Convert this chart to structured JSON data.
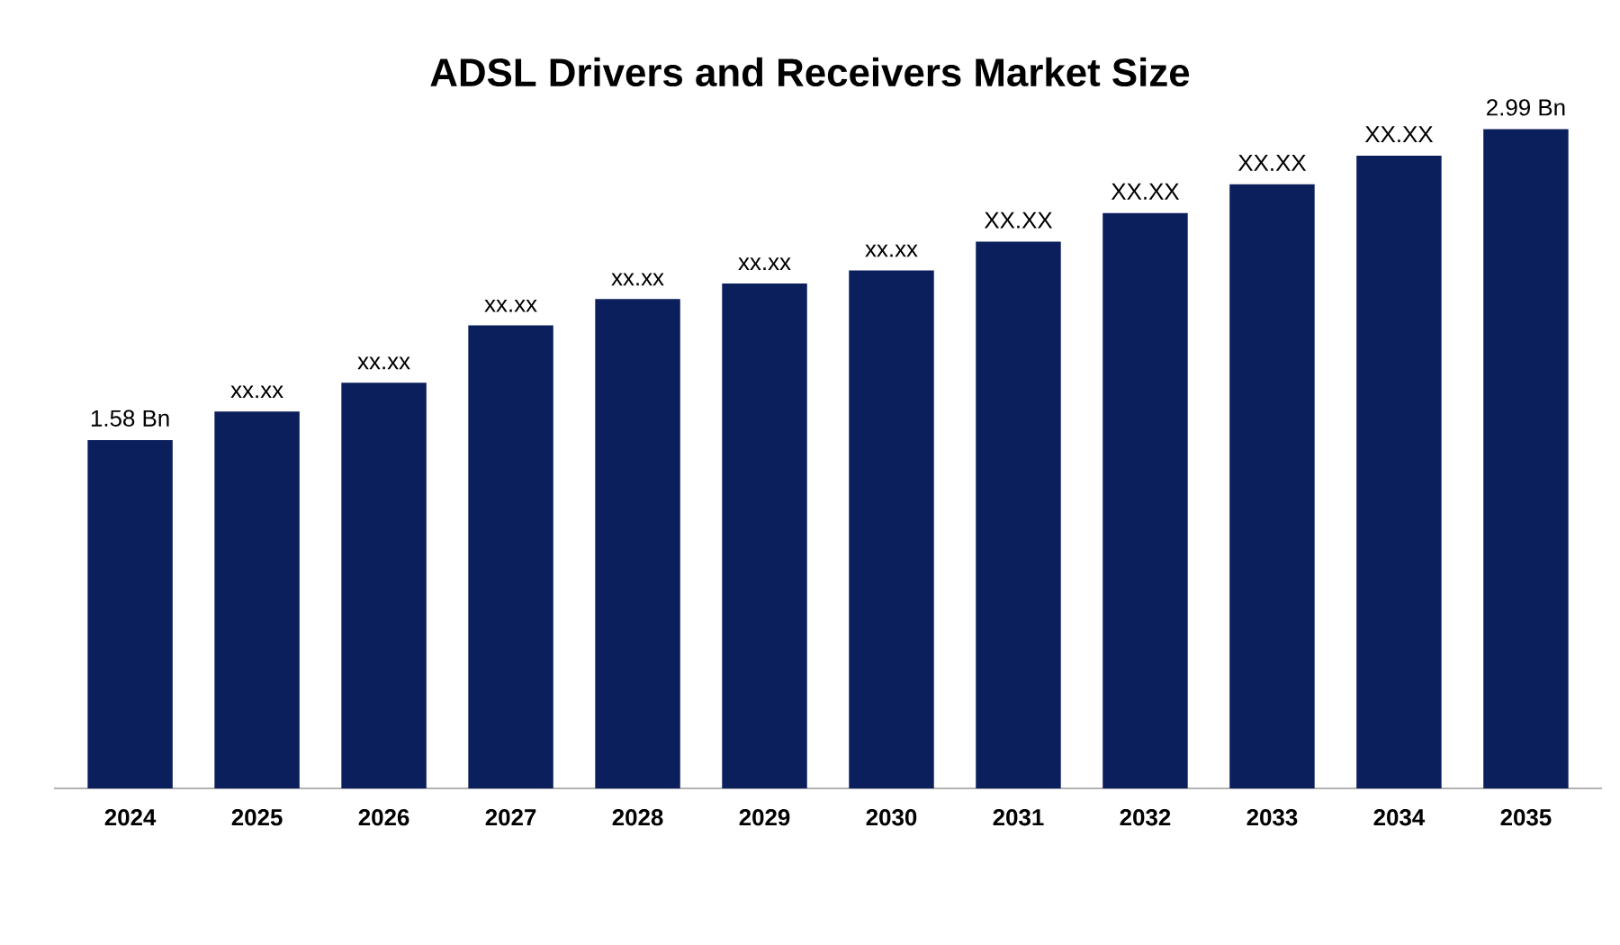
{
  "chart_data": {
    "type": "bar",
    "title": "ADSL Drivers and Receivers Market Size",
    "categories": [
      "2024",
      "2025",
      "2026",
      "2027",
      "2028",
      "2029",
      "2030",
      "2031",
      "2032",
      "2033",
      "2034",
      "2035"
    ],
    "values": [
      1.58,
      1.71,
      1.84,
      2.1,
      2.22,
      2.29,
      2.35,
      2.48,
      2.61,
      2.74,
      2.87,
      2.99
    ],
    "value_labels": [
      "1.58 Bn",
      "xx.xx",
      "xx.xx",
      "xx.xx",
      "xx.xx",
      "xx.xx",
      "xx.xx",
      "XX.XX",
      "XX.XX",
      "XX.XX",
      "XX.XX",
      "2.99 Bn"
    ],
    "color": "#0b1f5c"
  }
}
